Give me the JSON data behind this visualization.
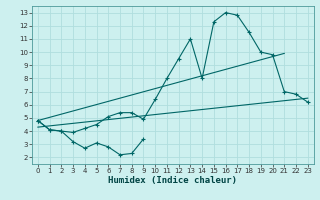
{
  "xlabel": "Humidex (Indice chaleur)",
  "bg_color": "#cdf0ef",
  "grid_color": "#b0dede",
  "line_color": "#006666",
  "xlim": [
    -0.5,
    23.5
  ],
  "ylim": [
    1.5,
    13.5
  ],
  "xticks": [
    0,
    1,
    2,
    3,
    4,
    5,
    6,
    7,
    8,
    9,
    10,
    11,
    12,
    13,
    14,
    15,
    16,
    17,
    18,
    19,
    20,
    21,
    22,
    23
  ],
  "yticks": [
    2,
    3,
    4,
    5,
    6,
    7,
    8,
    9,
    10,
    11,
    12,
    13
  ],
  "series1_x": [
    0,
    1,
    2,
    3,
    4,
    5,
    6,
    7,
    8,
    9,
    10,
    11,
    12,
    13,
    14,
    15,
    16,
    17,
    18,
    19,
    20,
    21,
    22,
    23
  ],
  "series1_y": [
    4.8,
    4.1,
    4.0,
    3.9,
    4.2,
    4.5,
    5.1,
    5.4,
    5.4,
    4.9,
    6.4,
    8.0,
    9.5,
    11.0,
    8.0,
    12.3,
    13.0,
    12.8,
    11.5,
    10.0,
    9.8,
    7.0,
    6.8,
    6.2
  ],
  "series2_x": [
    0,
    21
  ],
  "series2_y": [
    4.8,
    9.9
  ],
  "series3_x": [
    0,
    23
  ],
  "series3_y": [
    4.3,
    6.5
  ],
  "series4_x": [
    0,
    1,
    2,
    3,
    4,
    5,
    6,
    7,
    8,
    9
  ],
  "series4_y": [
    4.8,
    4.1,
    4.0,
    3.2,
    2.7,
    3.1,
    2.8,
    2.2,
    2.3,
    3.4
  ]
}
